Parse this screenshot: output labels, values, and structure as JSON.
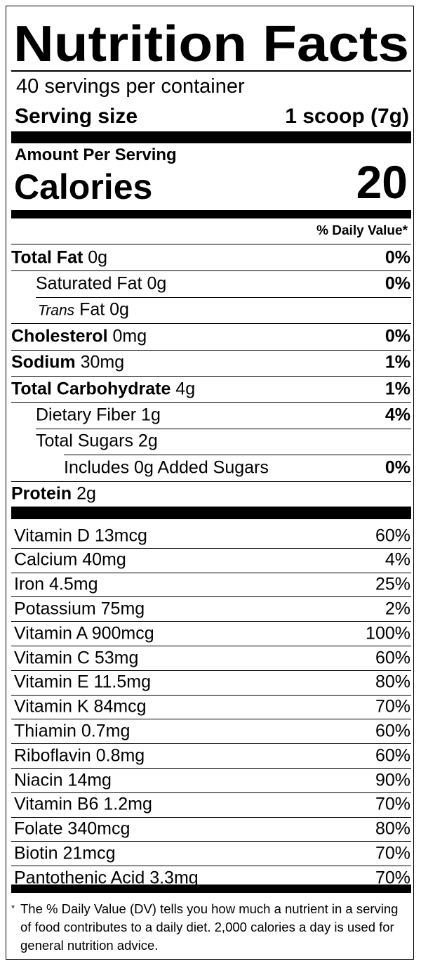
{
  "header": {
    "title": "Nutrition Facts",
    "servings": "40 servings per container",
    "serving_size_label": "Serving size",
    "serving_size_value": "1 scoop (7g)"
  },
  "calories": {
    "amount_label": "Amount Per Serving",
    "label": "Calories",
    "value": "20"
  },
  "dv_header": "% Daily Value*",
  "nutrients": [
    {
      "name": "Total Fat",
      "amount": "0g",
      "dv": "0%"
    },
    {
      "name": "Saturated Fat",
      "amount": "0g",
      "dv": "0%"
    },
    {
      "prefix": "Trans",
      "name": "Fat",
      "amount": "0g"
    },
    {
      "name": "Cholesterol",
      "amount": "0mg",
      "dv": "0%"
    },
    {
      "name": "Sodium",
      "amount": "30mg",
      "dv": "1%"
    },
    {
      "name": "Total Carbohydrate",
      "amount": "4g",
      "dv": "1%"
    },
    {
      "name": "Dietary Fiber",
      "amount": "1g",
      "dv": "4%"
    },
    {
      "name": "Total Sugars",
      "amount": "2g"
    },
    {
      "name": "Includes 0g Added Sugars",
      "dv": "0%"
    },
    {
      "name": "Protein",
      "amount": "2g"
    }
  ],
  "vitamins": [
    {
      "name": "Vitamin D 13mcg",
      "dv": "60%"
    },
    {
      "name": "Calcium 40mg",
      "dv": "4%"
    },
    {
      "name": "Iron 4.5mg",
      "dv": "25%"
    },
    {
      "name": "Potassium 75mg",
      "dv": "2%"
    },
    {
      "name": "Vitamin A 900mcg",
      "dv": "100%"
    },
    {
      "name": "Vitamin C 53mg",
      "dv": "60%"
    },
    {
      "name": "Vitamin E 11.5mg",
      "dv": "80%"
    },
    {
      "name": "Vitamin K 84mcg",
      "dv": "70%"
    },
    {
      "name": "Thiamin 0.7mg",
      "dv": "60%"
    },
    {
      "name": "Riboflavin 0.8mg",
      "dv": "60%"
    },
    {
      "name": "Niacin 14mg",
      "dv": "90%"
    },
    {
      "name": "Vitamin B6 1.2mg",
      "dv": "70%"
    },
    {
      "name": "Folate 340mcg",
      "dv": "80%"
    },
    {
      "name": "Biotin 21mcg",
      "dv": "70%"
    },
    {
      "name": "Pantothenic Acid 3.3mg",
      "dv": "70%"
    }
  ],
  "footnote": {
    "marker": "*",
    "text": "The % Daily Value (DV) tells you how much a nutrient in a serving of food contributes to a daily diet. 2,000 calories a day is used for general nutrition advice."
  }
}
